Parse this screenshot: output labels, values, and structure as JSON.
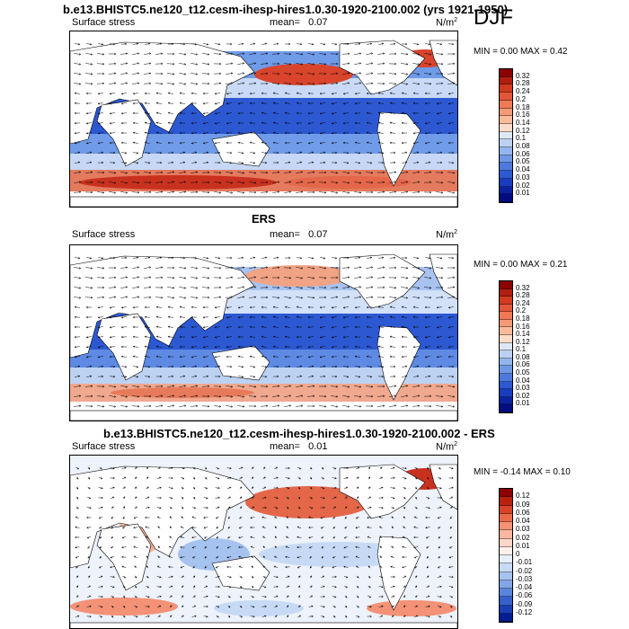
{
  "season": "DJF",
  "panels": [
    {
      "title": "b.e13.BHISTC5.ne120_t12.cesm-ihesp-hires1.0.30-1920-2100.002 (yrs 1921-1950)",
      "left_label": "Surface stress",
      "mean_label": "mean=",
      "mean_value": "0.07",
      "units": "N/m",
      "units_sup": "2",
      "minmax": "MIN =  0.00 MAX =  0.42",
      "colorbar": {
        "labels": [
          "0.32",
          "0.28",
          "0.24",
          "0.2",
          "0.18",
          "0.16",
          "0.14",
          "0.12",
          "0.1",
          "0.08",
          "0.06",
          "0.05",
          "0.04",
          "0.03",
          "0.02",
          "0.01"
        ],
        "colors": [
          "#8b0000",
          "#b01e0f",
          "#d03a1e",
          "#e2573a",
          "#ef7a55",
          "#f49a78",
          "#f8bb9c",
          "#fbdcc8",
          "#dde7f6",
          "#bcd1f1",
          "#93b5ed",
          "#6e97e6",
          "#4d79de",
          "#2f59d2",
          "#1a3cbe",
          "#0b22a0",
          "#000c80"
        ]
      }
    },
    {
      "title": "ERS",
      "left_label": "Surface stress",
      "mean_label": "mean=",
      "mean_value": "0.07",
      "units": "N/m",
      "units_sup": "2",
      "minmax": "MIN =  0.00 MAX =  0.21",
      "colorbar": {
        "labels": [
          "0.32",
          "0.28",
          "0.24",
          "0.2",
          "0.18",
          "0.16",
          "0.14",
          "0.12",
          "0.1",
          "0.08",
          "0.06",
          "0.05",
          "0.04",
          "0.03",
          "0.02",
          "0.01"
        ],
        "colors": [
          "#8b0000",
          "#b01e0f",
          "#d03a1e",
          "#e2573a",
          "#ef7a55",
          "#f49a78",
          "#f8bb9c",
          "#fbdcc8",
          "#dde7f6",
          "#bcd1f1",
          "#93b5ed",
          "#6e97e6",
          "#4d79de",
          "#2f59d2",
          "#1a3cbe",
          "#0b22a0",
          "#000c80"
        ]
      }
    },
    {
      "title": "b.e13.BHISTC5.ne120_t12.cesm-ihesp-hires1.0.30-1920-2100.002 - ERS",
      "left_label": "Surface stress",
      "mean_label": "mean=",
      "mean_value": "0.01",
      "units": "N/m",
      "units_sup": "2",
      "minmax": "MIN = -0.14 MAX =  0.10",
      "colorbar": {
        "labels": [
          "0.12",
          "0.09",
          "0.06",
          "0.04",
          "0.03",
          "0.02",
          "0.01",
          "0",
          "-0.01",
          "-0.02",
          "-0.03",
          "-0.04",
          "-0.06",
          "-0.09",
          "-0.12"
        ],
        "colors": [
          "#8b0000",
          "#b8200f",
          "#d8432a",
          "#ea6a4a",
          "#f39277",
          "#f8b7a0",
          "#fbd7c8",
          "#fdf0ea",
          "#e6effb",
          "#c7daf5",
          "#a6c2ef",
          "#82a6e8",
          "#5b84dc",
          "#3760cc",
          "#1a3cb4",
          "#031c90"
        ]
      }
    }
  ]
}
